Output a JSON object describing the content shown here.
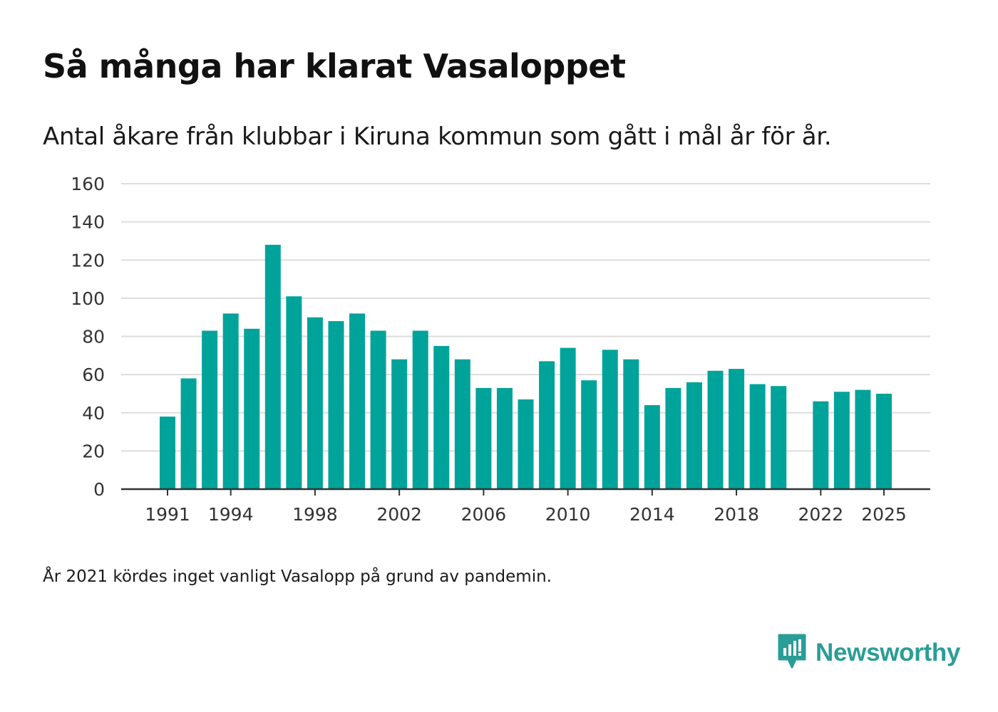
{
  "header": {
    "title": "Så många har klarat Vasaloppet",
    "subtitle": "Antal åkare från klubbar i Kiruna kommun som gått i mål år för år."
  },
  "footer": {
    "note": "År 2021 kördes inget vanligt Vasalopp på grund av pandemin.",
    "brand": "Newsworthy",
    "brand_icon": "newsworthy-logo-icon"
  },
  "colors": {
    "bar": "#00a39a",
    "grid": "#dddddd",
    "axis": "#333333",
    "brand": "#2a9d96"
  },
  "chart_data": {
    "type": "bar",
    "title": "Så många har klarat Vasaloppet",
    "subtitle": "Antal åkare från klubbar i Kiruna kommun som gått i mål år för år.",
    "xlabel": "",
    "ylabel": "",
    "ylim": [
      0,
      160
    ],
    "yticks": [
      0,
      20,
      40,
      60,
      80,
      100,
      120,
      140,
      160
    ],
    "xlim": [
      1991,
      2025
    ],
    "xticks": [
      1991,
      1994,
      1998,
      2002,
      2006,
      2010,
      2014,
      2018,
      2022,
      2025
    ],
    "grid": true,
    "legend": "none",
    "series": [
      {
        "name": "Antal åkare",
        "x": [
          1991,
          1992,
          1993,
          1994,
          1995,
          1996,
          1997,
          1998,
          1999,
          2000,
          2001,
          2002,
          2003,
          2004,
          2005,
          2006,
          2007,
          2008,
          2009,
          2010,
          2011,
          2012,
          2013,
          2014,
          2015,
          2016,
          2017,
          2018,
          2019,
          2020,
          2021,
          2022,
          2023,
          2024,
          2025
        ],
        "values": [
          38,
          58,
          83,
          92,
          84,
          128,
          101,
          90,
          88,
          92,
          83,
          68,
          83,
          75,
          68,
          53,
          53,
          47,
          67,
          74,
          57,
          73,
          68,
          44,
          53,
          56,
          62,
          63,
          55,
          54,
          null,
          46,
          51,
          52,
          50
        ]
      }
    ]
  }
}
